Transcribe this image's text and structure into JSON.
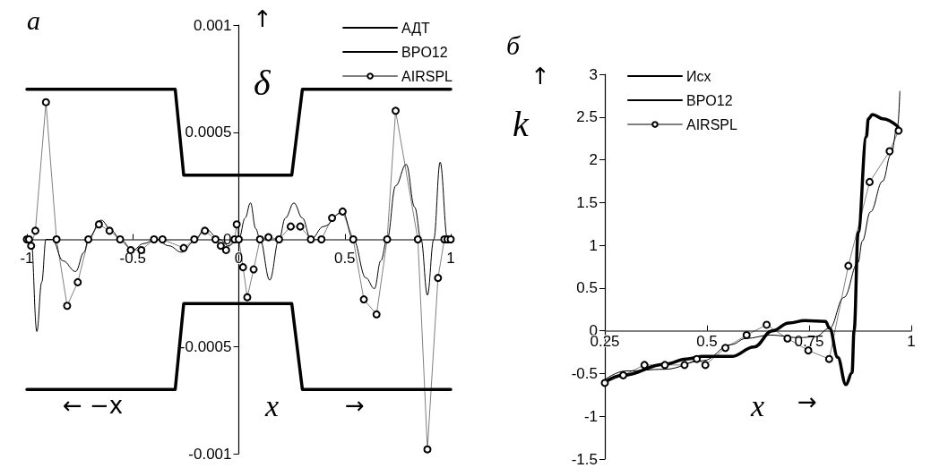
{
  "chart_data": [
    {
      "type": "line",
      "title": "a",
      "ylabel": "δ",
      "xlabel": "x",
      "annotations": [
        "↑",
        "← −x",
        "→"
      ],
      "xlim": [
        -1,
        1
      ],
      "xticks": [
        -1,
        -0.5,
        0,
        0.5,
        1
      ],
      "ylim": [
        -0.001,
        0.001
      ],
      "yticks": [
        -0.001,
        -0.0005,
        0,
        0.0005,
        0.001
      ],
      "grid": false,
      "legend": "top right",
      "series": [
        {
          "name": "АДТ",
          "color": "#000000",
          "marker": "none",
          "x": [
            -1,
            -0.3,
            -0.26,
            0.25,
            0.3,
            1,
            0,
            -1,
            -0.3,
            -0.26,
            0.25,
            0.3,
            1
          ],
          "values": [
            0.0007,
            0.0007,
            0.0003,
            0.0003,
            0.0007,
            0.0007,
            null,
            -0.0007,
            -0.0007,
            -0.0003,
            -0.0003,
            -0.0007,
            -0.0007
          ]
        },
        {
          "name": "BPO12",
          "color": "#000000",
          "marker": "none",
          "x": [
            -1,
            -0.98,
            -0.953,
            -0.93,
            -0.91,
            -0.88,
            -0.83,
            -0.77,
            -0.73,
            -0.71,
            -0.65,
            -0.6,
            -0.56,
            -0.5,
            -0.45,
            -0.39,
            -0.33,
            -0.27,
            -0.21,
            -0.16,
            -0.09,
            -0.05,
            0,
            0.03,
            0.055,
            0.08,
            0.1,
            0.146,
            0.19,
            0.22,
            0.26,
            0.3,
            0.34,
            0.4,
            0.49,
            0.54,
            0.6,
            0.64,
            0.67,
            0.7,
            0.74,
            0.79,
            0.83,
            0.86,
            0.89,
            0.92,
            0.95,
            0.985,
            1
          ],
          "values": [
            0,
            0,
            -0.00043,
            -0.0002,
            0,
            0,
            -0.0001,
            -0.00015,
            -6e-05,
            0,
            9e-05,
            4e-05,
            0,
            -5e-05,
            -2e-05,
            0,
            -3e-05,
            -6e-05,
            -1e-05,
            5e-05,
            0,
            -3e-05,
            0,
            0.0001,
            0.00017,
            5e-05,
            0,
            -0.00019,
            0,
            0.0001,
            0.00017,
            0.0001,
            0,
            6e-05,
            0.00013,
            0,
            -0.00018,
            -0.00023,
            -0.0001,
            0,
            0.00025,
            0.00035,
            0.00015,
            0,
            -0.00026,
            0,
            0.00036,
            0,
            0
          ]
        },
        {
          "name": "AIRSPL",
          "color": "#000000",
          "marker": "circle",
          "x": [
            -1,
            -0.99,
            -0.98,
            -0.96,
            -0.91,
            -0.86,
            -0.81,
            -0.76,
            -0.71,
            -0.66,
            -0.61,
            -0.56,
            -0.51,
            -0.46,
            -0.4,
            -0.36,
            -0.26,
            -0.21,
            -0.16,
            -0.11,
            -0.085,
            -0.06,
            -0.02,
            -0.01,
            0,
            0.02,
            0.04,
            0.07,
            0.1,
            0.14,
            0.19,
            0.245,
            0.29,
            0.34,
            0.39,
            0.44,
            0.49,
            0.54,
            0.59,
            0.65,
            0.7,
            0.74,
            0.845,
            0.89,
            0.94,
            0.97,
            0.985,
            1
          ],
          "values": [
            0,
            0,
            -3e-05,
            4e-05,
            0.00064,
            0,
            -0.00031,
            -0.0002,
            0,
            7e-05,
            4e-05,
            0,
            -5e-05,
            -5e-05,
            0,
            0,
            -4e-05,
            0,
            4e-05,
            0,
            -3e-05,
            -5e-05,
            0,
            7e-05,
            0,
            -0.00013,
            -0.00027,
            -0.00014,
            0,
            1e-05,
            0,
            6e-05,
            6e-05,
            0,
            0,
            0.0001,
            0.00013,
            0,
            -0.00028,
            -0.00035,
            0,
            0.0006,
            0,
            -0.00098,
            -0.00018,
            0,
            0,
            0
          ]
        }
      ]
    },
    {
      "type": "line",
      "title": "б",
      "ylabel": "k",
      "xlabel": "x",
      "annotations": [
        "↑",
        "→"
      ],
      "xlim": [
        0.25,
        1
      ],
      "xticks": [
        0.25,
        0.5,
        0.75,
        1
      ],
      "ylim": [
        -1.5,
        3
      ],
      "yticks": [
        -1.5,
        -1,
        -0.5,
        0,
        0.5,
        1,
        1.5,
        2,
        2.5,
        3
      ],
      "grid": false,
      "legend": "top left",
      "series": [
        {
          "name": "Исх",
          "color": "#000000",
          "marker": "none",
          "x": [
            0.25,
            0.295,
            0.397,
            0.45,
            0.49,
            0.56,
            0.615,
            0.66,
            0.7,
            0.74,
            0.79,
            0.8,
            0.82,
            0.84,
            0.855,
            0.86,
            0.87,
            0.89,
            0.895,
            0.905,
            0.93,
            0.967
          ],
          "values": [
            -0.6,
            -0.52,
            -0.39,
            -0.33,
            -0.3,
            -0.3,
            -0.19,
            0,
            0.09,
            0.12,
            0.11,
            0.03,
            -0.31,
            -0.63,
            -0.49,
            0,
            1.15,
            2.27,
            2.48,
            2.53,
            2.48,
            2.39
          ]
        },
        {
          "name": "BPO12",
          "color": "#000000",
          "marker": "none",
          "x": [
            0.25,
            0.3,
            0.397,
            0.49,
            0.56,
            0.595,
            0.655,
            0.725,
            0.765,
            0.8,
            0.835,
            0.87,
            0.88,
            0.9,
            0.93,
            0.95,
            0.967,
            0.972
          ],
          "values": [
            -0.57,
            -0.47,
            -0.45,
            -0.35,
            -0.16,
            -0.09,
            -0.05,
            -0.08,
            -0.07,
            0.03,
            0.39,
            0.8,
            1.05,
            1.39,
            1.75,
            2.06,
            2.41,
            2.8
          ]
        },
        {
          "name": "AIRSPL",
          "color": "#000000",
          "marker": "circle",
          "x": [
            0.25,
            0.295,
            0.347,
            0.397,
            0.445,
            0.475,
            0.496,
            0.545,
            0.597,
            0.646,
            0.697,
            0.748,
            0.799,
            0.846,
            0.898,
            0.947,
            0.969
          ],
          "values": [
            -0.61,
            -0.52,
            -0.4,
            -0.4,
            -0.4,
            -0.33,
            -0.4,
            -0.2,
            -0.05,
            0.07,
            -0.09,
            -0.23,
            -0.33,
            0.76,
            1.74,
            2.1,
            2.34
          ]
        }
      ]
    }
  ]
}
